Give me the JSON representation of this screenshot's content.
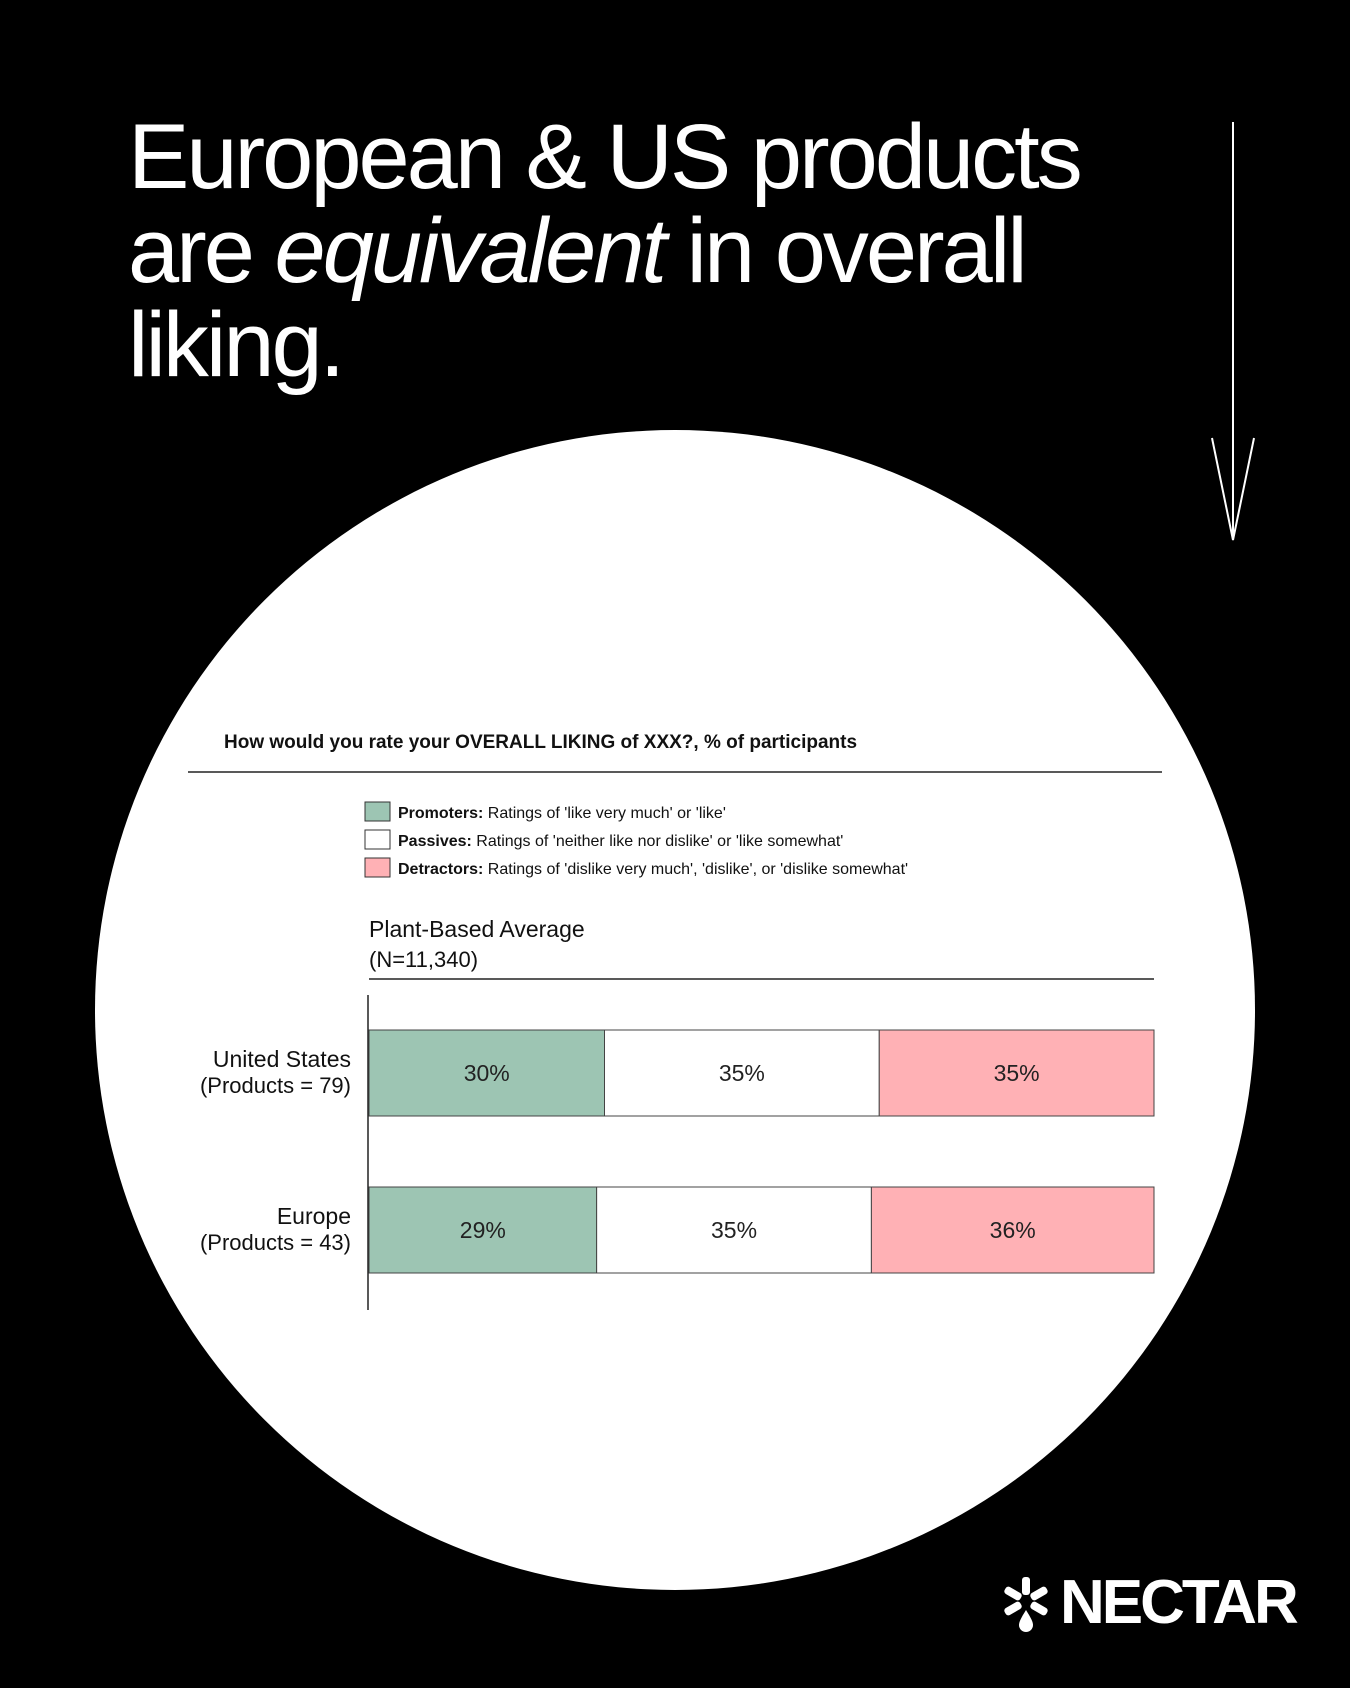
{
  "headline": {
    "part1": "European & US products are ",
    "emphasis": "equivalent",
    "part2": " in overall liking."
  },
  "brand": {
    "name": "NECTAR",
    "icon": "nectar-flower-icon"
  },
  "colors": {
    "background": "#000000",
    "promoters": "#9dc5b3",
    "passives": "#ffffff",
    "detractors": "#ffb1b5",
    "ink": "#111111"
  },
  "chart_data": {
    "type": "bar",
    "orientation": "horizontal",
    "stacked": true,
    "title": "How would you rate your OVERALL LIKING of XXX?, % of participants",
    "group_title": "Plant-Based Average",
    "group_subtitle": "(N=11,340)",
    "legend": [
      {
        "key": "promoters",
        "name": "Promoters:",
        "description": "Ratings of 'like very much' or 'like'"
      },
      {
        "key": "passives",
        "name": "Passives:",
        "description": "Ratings of 'neither like nor dislike' or 'like somewhat'"
      },
      {
        "key": "detractors",
        "name": "Detractors:",
        "description": "Ratings of 'dislike very much', 'dislike', or 'dislike somewhat'"
      }
    ],
    "legend_position": "top",
    "categories": [
      {
        "name": "United States",
        "sub": "(Products = 79)"
      },
      {
        "name": "Europe",
        "sub": "(Products = 43)"
      }
    ],
    "series": [
      {
        "name": "Promoters",
        "key": "promoters",
        "values": [
          30,
          29
        ]
      },
      {
        "name": "Passives",
        "key": "passives",
        "values": [
          35,
          35
        ]
      },
      {
        "name": "Detractors",
        "key": "detractors",
        "values": [
          35,
          36
        ]
      }
    ],
    "value_suffix": "%",
    "xlim": [
      0,
      100
    ],
    "grid": false
  }
}
